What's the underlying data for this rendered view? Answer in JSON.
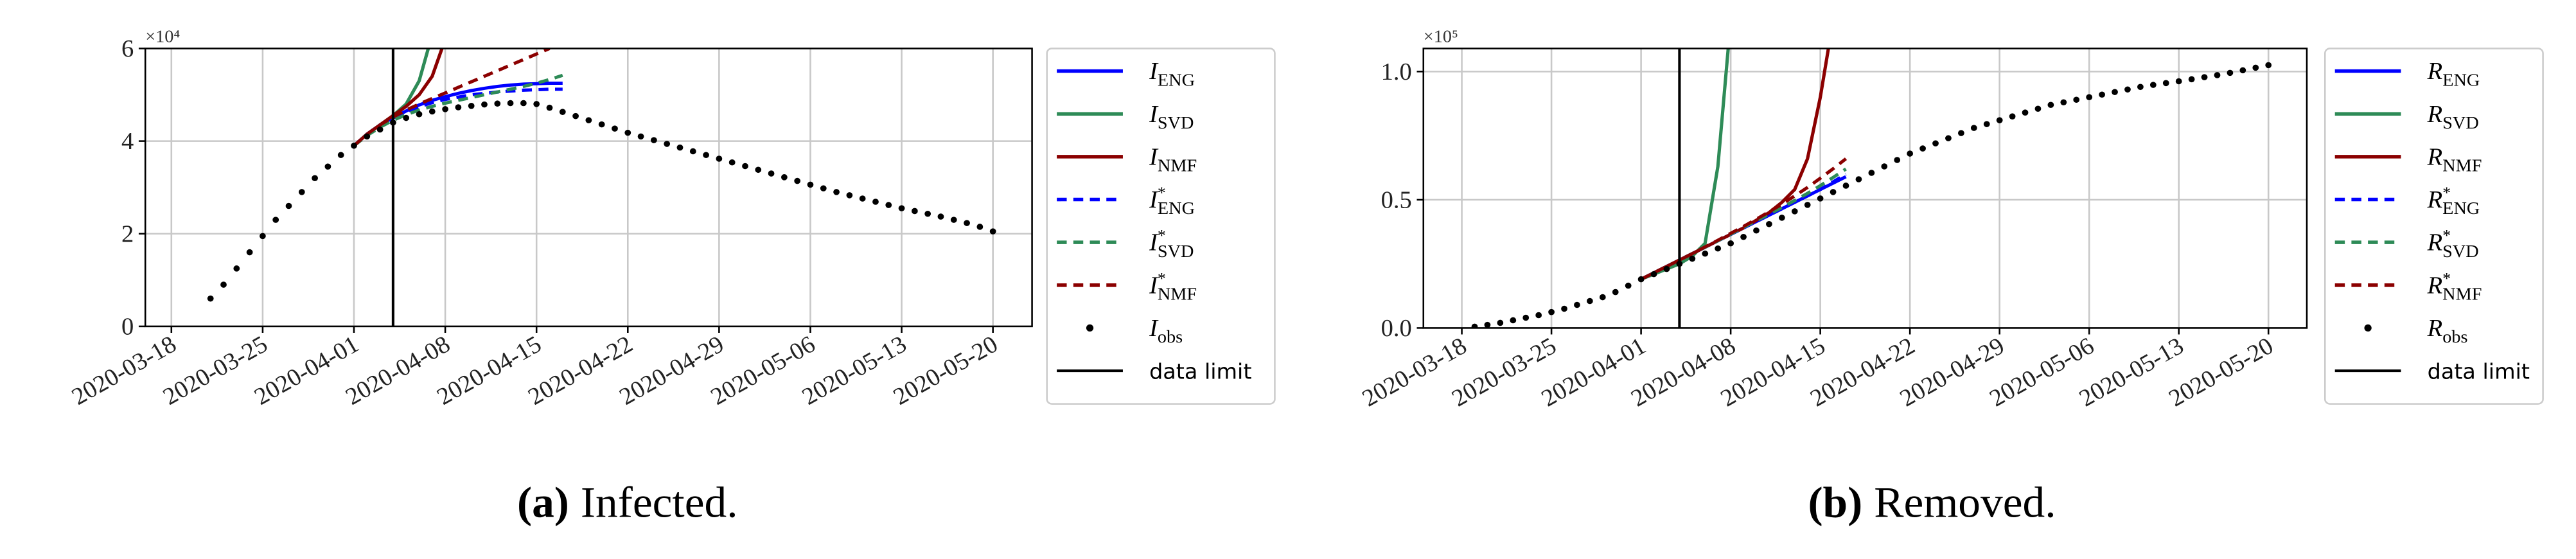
{
  "chart_data": [
    {
      "type": "line",
      "caption_label": "(a)",
      "caption": "Infected.",
      "y_multiplier": "×10⁴",
      "xlim": [
        "2020-03-16",
        "2020-05-23"
      ],
      "xticks": [
        "2020-03-18",
        "2020-03-25",
        "2020-04-01",
        "2020-04-08",
        "2020-04-15",
        "2020-04-22",
        "2020-04-29",
        "2020-05-06",
        "2020-05-13",
        "2020-05-20"
      ],
      "ylim": [
        0,
        6
      ],
      "yticks": [
        0,
        2,
        4,
        6
      ],
      "grid": true,
      "legend": "outside-right",
      "data_limit": {
        "x": "2020-04-04",
        "label": "data limit",
        "color": "#000000"
      },
      "series": [
        {
          "name": "I",
          "sub": "ENG",
          "color": "#0000ff",
          "style": "solid",
          "x": [
            "2020-04-01",
            "2020-04-02",
            "2020-04-03",
            "2020-04-04",
            "2020-04-05",
            "2020-04-06",
            "2020-04-07",
            "2020-04-08",
            "2020-04-09",
            "2020-04-10",
            "2020-04-11",
            "2020-04-12",
            "2020-04-13",
            "2020-04-14",
            "2020-04-15",
            "2020-04-16",
            "2020-04-17"
          ],
          "values": [
            3.9,
            4.15,
            4.35,
            4.5,
            4.65,
            4.78,
            4.88,
            4.96,
            5.03,
            5.09,
            5.14,
            5.18,
            5.21,
            5.23,
            5.24,
            5.25,
            5.25
          ]
        },
        {
          "name": "I",
          "sub": "SVD",
          "color": "#2e8b57",
          "style": "solid",
          "x": [
            "2020-04-01",
            "2020-04-02",
            "2020-04-03",
            "2020-04-04",
            "2020-04-05",
            "2020-04-06",
            "2020-04-07"
          ],
          "values": [
            3.9,
            4.15,
            4.35,
            4.55,
            4.8,
            5.3,
            6.3
          ]
        },
        {
          "name": "I",
          "sub": "NMF",
          "color": "#8b0000",
          "style": "solid",
          "x": [
            "2020-04-01",
            "2020-04-02",
            "2020-04-03",
            "2020-04-04",
            "2020-04-05",
            "2020-04-06",
            "2020-04-07",
            "2020-04-08"
          ],
          "values": [
            3.9,
            4.15,
            4.35,
            4.55,
            4.75,
            5.0,
            5.4,
            6.2
          ]
        },
        {
          "name": "I",
          "sup": "*",
          "sub": "ENG",
          "color": "#0000ff",
          "style": "dashed",
          "x": [
            "2020-04-01",
            "2020-04-02",
            "2020-04-03",
            "2020-04-04",
            "2020-04-05",
            "2020-04-06",
            "2020-04-07",
            "2020-04-08",
            "2020-04-09",
            "2020-04-10",
            "2020-04-11",
            "2020-04-12",
            "2020-04-13",
            "2020-04-14",
            "2020-04-15",
            "2020-04-16",
            "2020-04-17"
          ],
          "values": [
            3.9,
            4.15,
            4.35,
            4.5,
            4.63,
            4.74,
            4.83,
            4.9,
            4.95,
            5.0,
            5.03,
            5.06,
            5.08,
            5.1,
            5.11,
            5.12,
            5.12
          ]
        },
        {
          "name": "I",
          "sup": "*",
          "sub": "SVD",
          "color": "#2e8b57",
          "style": "dashed",
          "x": [
            "2020-04-01",
            "2020-04-02",
            "2020-04-03",
            "2020-04-04",
            "2020-04-05",
            "2020-04-06",
            "2020-04-07",
            "2020-04-08",
            "2020-04-09",
            "2020-04-10",
            "2020-04-11",
            "2020-04-12",
            "2020-04-13",
            "2020-04-14",
            "2020-04-15",
            "2020-04-16",
            "2020-04-17"
          ],
          "values": [
            3.9,
            4.12,
            4.3,
            4.45,
            4.57,
            4.67,
            4.75,
            4.82,
            4.88,
            4.94,
            5.0,
            5.06,
            5.12,
            5.18,
            5.25,
            5.33,
            5.42
          ]
        },
        {
          "name": "I",
          "sup": "*",
          "sub": "NMF",
          "color": "#8b0000",
          "style": "dashed",
          "x": [
            "2020-04-01",
            "2020-04-02",
            "2020-04-03",
            "2020-04-04",
            "2020-04-05",
            "2020-04-06",
            "2020-04-07",
            "2020-04-08",
            "2020-04-09",
            "2020-04-10",
            "2020-04-11",
            "2020-04-12",
            "2020-04-13",
            "2020-04-14",
            "2020-04-15",
            "2020-04-16"
          ],
          "values": [
            3.9,
            4.15,
            4.35,
            4.52,
            4.67,
            4.8,
            4.92,
            5.04,
            5.16,
            5.28,
            5.4,
            5.52,
            5.64,
            5.76,
            5.88,
            6.0
          ]
        },
        {
          "name": "I",
          "sub": "obs",
          "color": "#000000",
          "style": "dots",
          "x": [
            "2020-03-21",
            "2020-03-22",
            "2020-03-23",
            "2020-03-24",
            "2020-03-25",
            "2020-03-26",
            "2020-03-27",
            "2020-03-28",
            "2020-03-29",
            "2020-03-30",
            "2020-03-31",
            "2020-04-01",
            "2020-04-02",
            "2020-04-03",
            "2020-04-04",
            "2020-04-05",
            "2020-04-06",
            "2020-04-07",
            "2020-04-08",
            "2020-04-09",
            "2020-04-10",
            "2020-04-11",
            "2020-04-12",
            "2020-04-13",
            "2020-04-14",
            "2020-04-15",
            "2020-04-16",
            "2020-04-17",
            "2020-04-18",
            "2020-04-19",
            "2020-04-20",
            "2020-04-21",
            "2020-04-22",
            "2020-04-23",
            "2020-04-24",
            "2020-04-25",
            "2020-04-26",
            "2020-04-27",
            "2020-04-28",
            "2020-04-29",
            "2020-04-30",
            "2020-05-01",
            "2020-05-02",
            "2020-05-03",
            "2020-05-04",
            "2020-05-05",
            "2020-05-06",
            "2020-05-07",
            "2020-05-08",
            "2020-05-09",
            "2020-05-10",
            "2020-05-11",
            "2020-05-12",
            "2020-05-13",
            "2020-05-14",
            "2020-05-15",
            "2020-05-16",
            "2020-05-17",
            "2020-05-18",
            "2020-05-19",
            "2020-05-20"
          ],
          "values": [
            0.6,
            0.9,
            1.25,
            1.6,
            1.95,
            2.3,
            2.6,
            2.9,
            3.2,
            3.45,
            3.7,
            3.9,
            4.1,
            4.25,
            4.4,
            4.5,
            4.58,
            4.64,
            4.69,
            4.73,
            4.76,
            4.79,
            4.81,
            4.82,
            4.82,
            4.8,
            4.72,
            4.63,
            4.54,
            4.45,
            4.36,
            4.27,
            4.18,
            4.1,
            4.02,
            3.94,
            3.86,
            3.78,
            3.7,
            3.62,
            3.54,
            3.46,
            3.38,
            3.3,
            3.22,
            3.14,
            3.06,
            2.98,
            2.9,
            2.83,
            2.76,
            2.69,
            2.62,
            2.55,
            2.49,
            2.43,
            2.37,
            2.3,
            2.23,
            2.15,
            2.05
          ]
        }
      ]
    },
    {
      "type": "line",
      "caption_label": "(b)",
      "caption": "Removed.",
      "y_multiplier": "×10⁵",
      "xlim": [
        "2020-03-15",
        "2020-05-23"
      ],
      "xticks": [
        "2020-03-18",
        "2020-03-25",
        "2020-04-01",
        "2020-04-08",
        "2020-04-15",
        "2020-04-22",
        "2020-04-29",
        "2020-05-06",
        "2020-05-13",
        "2020-05-20"
      ],
      "ylim": [
        0,
        1.09
      ],
      "yticks": [
        {
          "value": 0,
          "label": "0.0"
        },
        {
          "value": 0.5,
          "label": "0.5"
        },
        {
          "value": 1,
          "label": "1.0"
        }
      ],
      "grid": true,
      "legend": "outside-right",
      "data_limit": {
        "x": "2020-04-04",
        "label": "data limit",
        "color": "#000000"
      },
      "series": [
        {
          "name": "R",
          "sub": "ENG",
          "color": "#0000ff",
          "style": "solid",
          "x": [
            "2020-04-01",
            "2020-04-02",
            "2020-04-03",
            "2020-04-04",
            "2020-04-05",
            "2020-04-06",
            "2020-04-07",
            "2020-04-08",
            "2020-04-09",
            "2020-04-10",
            "2020-04-11",
            "2020-04-12",
            "2020-04-13",
            "2020-04-14",
            "2020-04-15",
            "2020-04-16",
            "2020-04-17"
          ],
          "values": [
            0.19,
            0.215,
            0.24,
            0.265,
            0.29,
            0.315,
            0.34,
            0.365,
            0.39,
            0.415,
            0.44,
            0.465,
            0.49,
            0.515,
            0.54,
            0.565,
            0.59
          ]
        },
        {
          "name": "R",
          "sub": "SVD",
          "color": "#2e8b57",
          "style": "solid",
          "x": [
            "2020-04-01",
            "2020-04-02",
            "2020-04-03",
            "2020-04-04",
            "2020-04-05",
            "2020-04-06",
            "2020-04-07",
            "2020-04-08"
          ],
          "values": [
            0.19,
            0.21,
            0.23,
            0.25,
            0.28,
            0.33,
            0.63,
            1.2
          ]
        },
        {
          "name": "R",
          "sub": "NMF",
          "color": "#8b0000",
          "style": "solid",
          "x": [
            "2020-04-01",
            "2020-04-02",
            "2020-04-03",
            "2020-04-04",
            "2020-04-05",
            "2020-04-06",
            "2020-04-07",
            "2020-04-08",
            "2020-04-09",
            "2020-04-10",
            "2020-04-11",
            "2020-04-12",
            "2020-04-13",
            "2020-04-14",
            "2020-04-15",
            "2020-04-16"
          ],
          "values": [
            0.19,
            0.215,
            0.24,
            0.265,
            0.29,
            0.315,
            0.34,
            0.365,
            0.39,
            0.42,
            0.45,
            0.49,
            0.54,
            0.66,
            0.9,
            1.2
          ]
        },
        {
          "name": "R",
          "sup": "*",
          "sub": "ENG",
          "color": "#0000ff",
          "style": "dashed",
          "x": [
            "2020-04-01",
            "2020-04-02",
            "2020-04-03",
            "2020-04-04",
            "2020-04-05",
            "2020-04-06",
            "2020-04-07",
            "2020-04-08",
            "2020-04-09",
            "2020-04-10",
            "2020-04-11",
            "2020-04-12",
            "2020-04-13",
            "2020-04-14",
            "2020-04-15",
            "2020-04-16",
            "2020-04-17"
          ],
          "values": [
            0.19,
            0.215,
            0.24,
            0.265,
            0.29,
            0.315,
            0.34,
            0.365,
            0.39,
            0.415,
            0.44,
            0.465,
            0.49,
            0.515,
            0.54,
            0.57,
            0.6
          ]
        },
        {
          "name": "R",
          "sup": "*",
          "sub": "SVD",
          "color": "#2e8b57",
          "style": "dashed",
          "x": [
            "2020-04-01",
            "2020-04-02",
            "2020-04-03",
            "2020-04-04",
            "2020-04-05",
            "2020-04-06",
            "2020-04-07",
            "2020-04-08",
            "2020-04-09",
            "2020-04-10",
            "2020-04-11",
            "2020-04-12",
            "2020-04-13",
            "2020-04-14",
            "2020-04-15",
            "2020-04-16",
            "2020-04-17"
          ],
          "values": [
            0.19,
            0.215,
            0.24,
            0.265,
            0.29,
            0.315,
            0.34,
            0.366,
            0.392,
            0.418,
            0.444,
            0.47,
            0.497,
            0.525,
            0.555,
            0.587,
            0.62
          ]
        },
        {
          "name": "R",
          "sup": "*",
          "sub": "NMF",
          "color": "#8b0000",
          "style": "dashed",
          "x": [
            "2020-04-01",
            "2020-04-02",
            "2020-04-03",
            "2020-04-04",
            "2020-04-05",
            "2020-04-06",
            "2020-04-07",
            "2020-04-08",
            "2020-04-09",
            "2020-04-10",
            "2020-04-11",
            "2020-04-12",
            "2020-04-13",
            "2020-04-14",
            "2020-04-15",
            "2020-04-16",
            "2020-04-17"
          ],
          "values": [
            0.19,
            0.215,
            0.24,
            0.265,
            0.29,
            0.316,
            0.342,
            0.369,
            0.396,
            0.424,
            0.453,
            0.483,
            0.515,
            0.548,
            0.584,
            0.621,
            0.66
          ]
        },
        {
          "name": "R",
          "sub": "obs",
          "color": "#000000",
          "style": "dots",
          "x": [
            "2020-03-19",
            "2020-03-20",
            "2020-03-21",
            "2020-03-22",
            "2020-03-23",
            "2020-03-24",
            "2020-03-25",
            "2020-03-26",
            "2020-03-27",
            "2020-03-28",
            "2020-03-29",
            "2020-03-30",
            "2020-03-31",
            "2020-04-01",
            "2020-04-02",
            "2020-04-03",
            "2020-04-04",
            "2020-04-05",
            "2020-04-06",
            "2020-04-07",
            "2020-04-08",
            "2020-04-09",
            "2020-04-10",
            "2020-04-11",
            "2020-04-12",
            "2020-04-13",
            "2020-04-14",
            "2020-04-15",
            "2020-04-16",
            "2020-04-17",
            "2020-04-18",
            "2020-04-19",
            "2020-04-20",
            "2020-04-21",
            "2020-04-22",
            "2020-04-23",
            "2020-04-24",
            "2020-04-25",
            "2020-04-26",
            "2020-04-27",
            "2020-04-28",
            "2020-04-29",
            "2020-04-30",
            "2020-05-01",
            "2020-05-02",
            "2020-05-03",
            "2020-05-04",
            "2020-05-05",
            "2020-05-06",
            "2020-05-07",
            "2020-05-08",
            "2020-05-09",
            "2020-05-10",
            "2020-05-11",
            "2020-05-12",
            "2020-05-13",
            "2020-05-14",
            "2020-05-15",
            "2020-05-16",
            "2020-05-17",
            "2020-05-18",
            "2020-05-19",
            "2020-05-20"
          ],
          "values": [
            0.005,
            0.012,
            0.02,
            0.03,
            0.04,
            0.05,
            0.062,
            0.075,
            0.09,
            0.105,
            0.12,
            0.14,
            0.165,
            0.19,
            0.21,
            0.23,
            0.25,
            0.27,
            0.29,
            0.31,
            0.33,
            0.355,
            0.38,
            0.405,
            0.43,
            0.455,
            0.48,
            0.505,
            0.53,
            0.555,
            0.58,
            0.605,
            0.63,
            0.655,
            0.68,
            0.7,
            0.72,
            0.74,
            0.76,
            0.78,
            0.795,
            0.81,
            0.825,
            0.84,
            0.855,
            0.87,
            0.88,
            0.89,
            0.9,
            0.91,
            0.92,
            0.93,
            0.94,
            0.948,
            0.955,
            0.962,
            0.97,
            0.978,
            0.986,
            0.995,
            1.005,
            1.015,
            1.025
          ]
        }
      ]
    }
  ]
}
